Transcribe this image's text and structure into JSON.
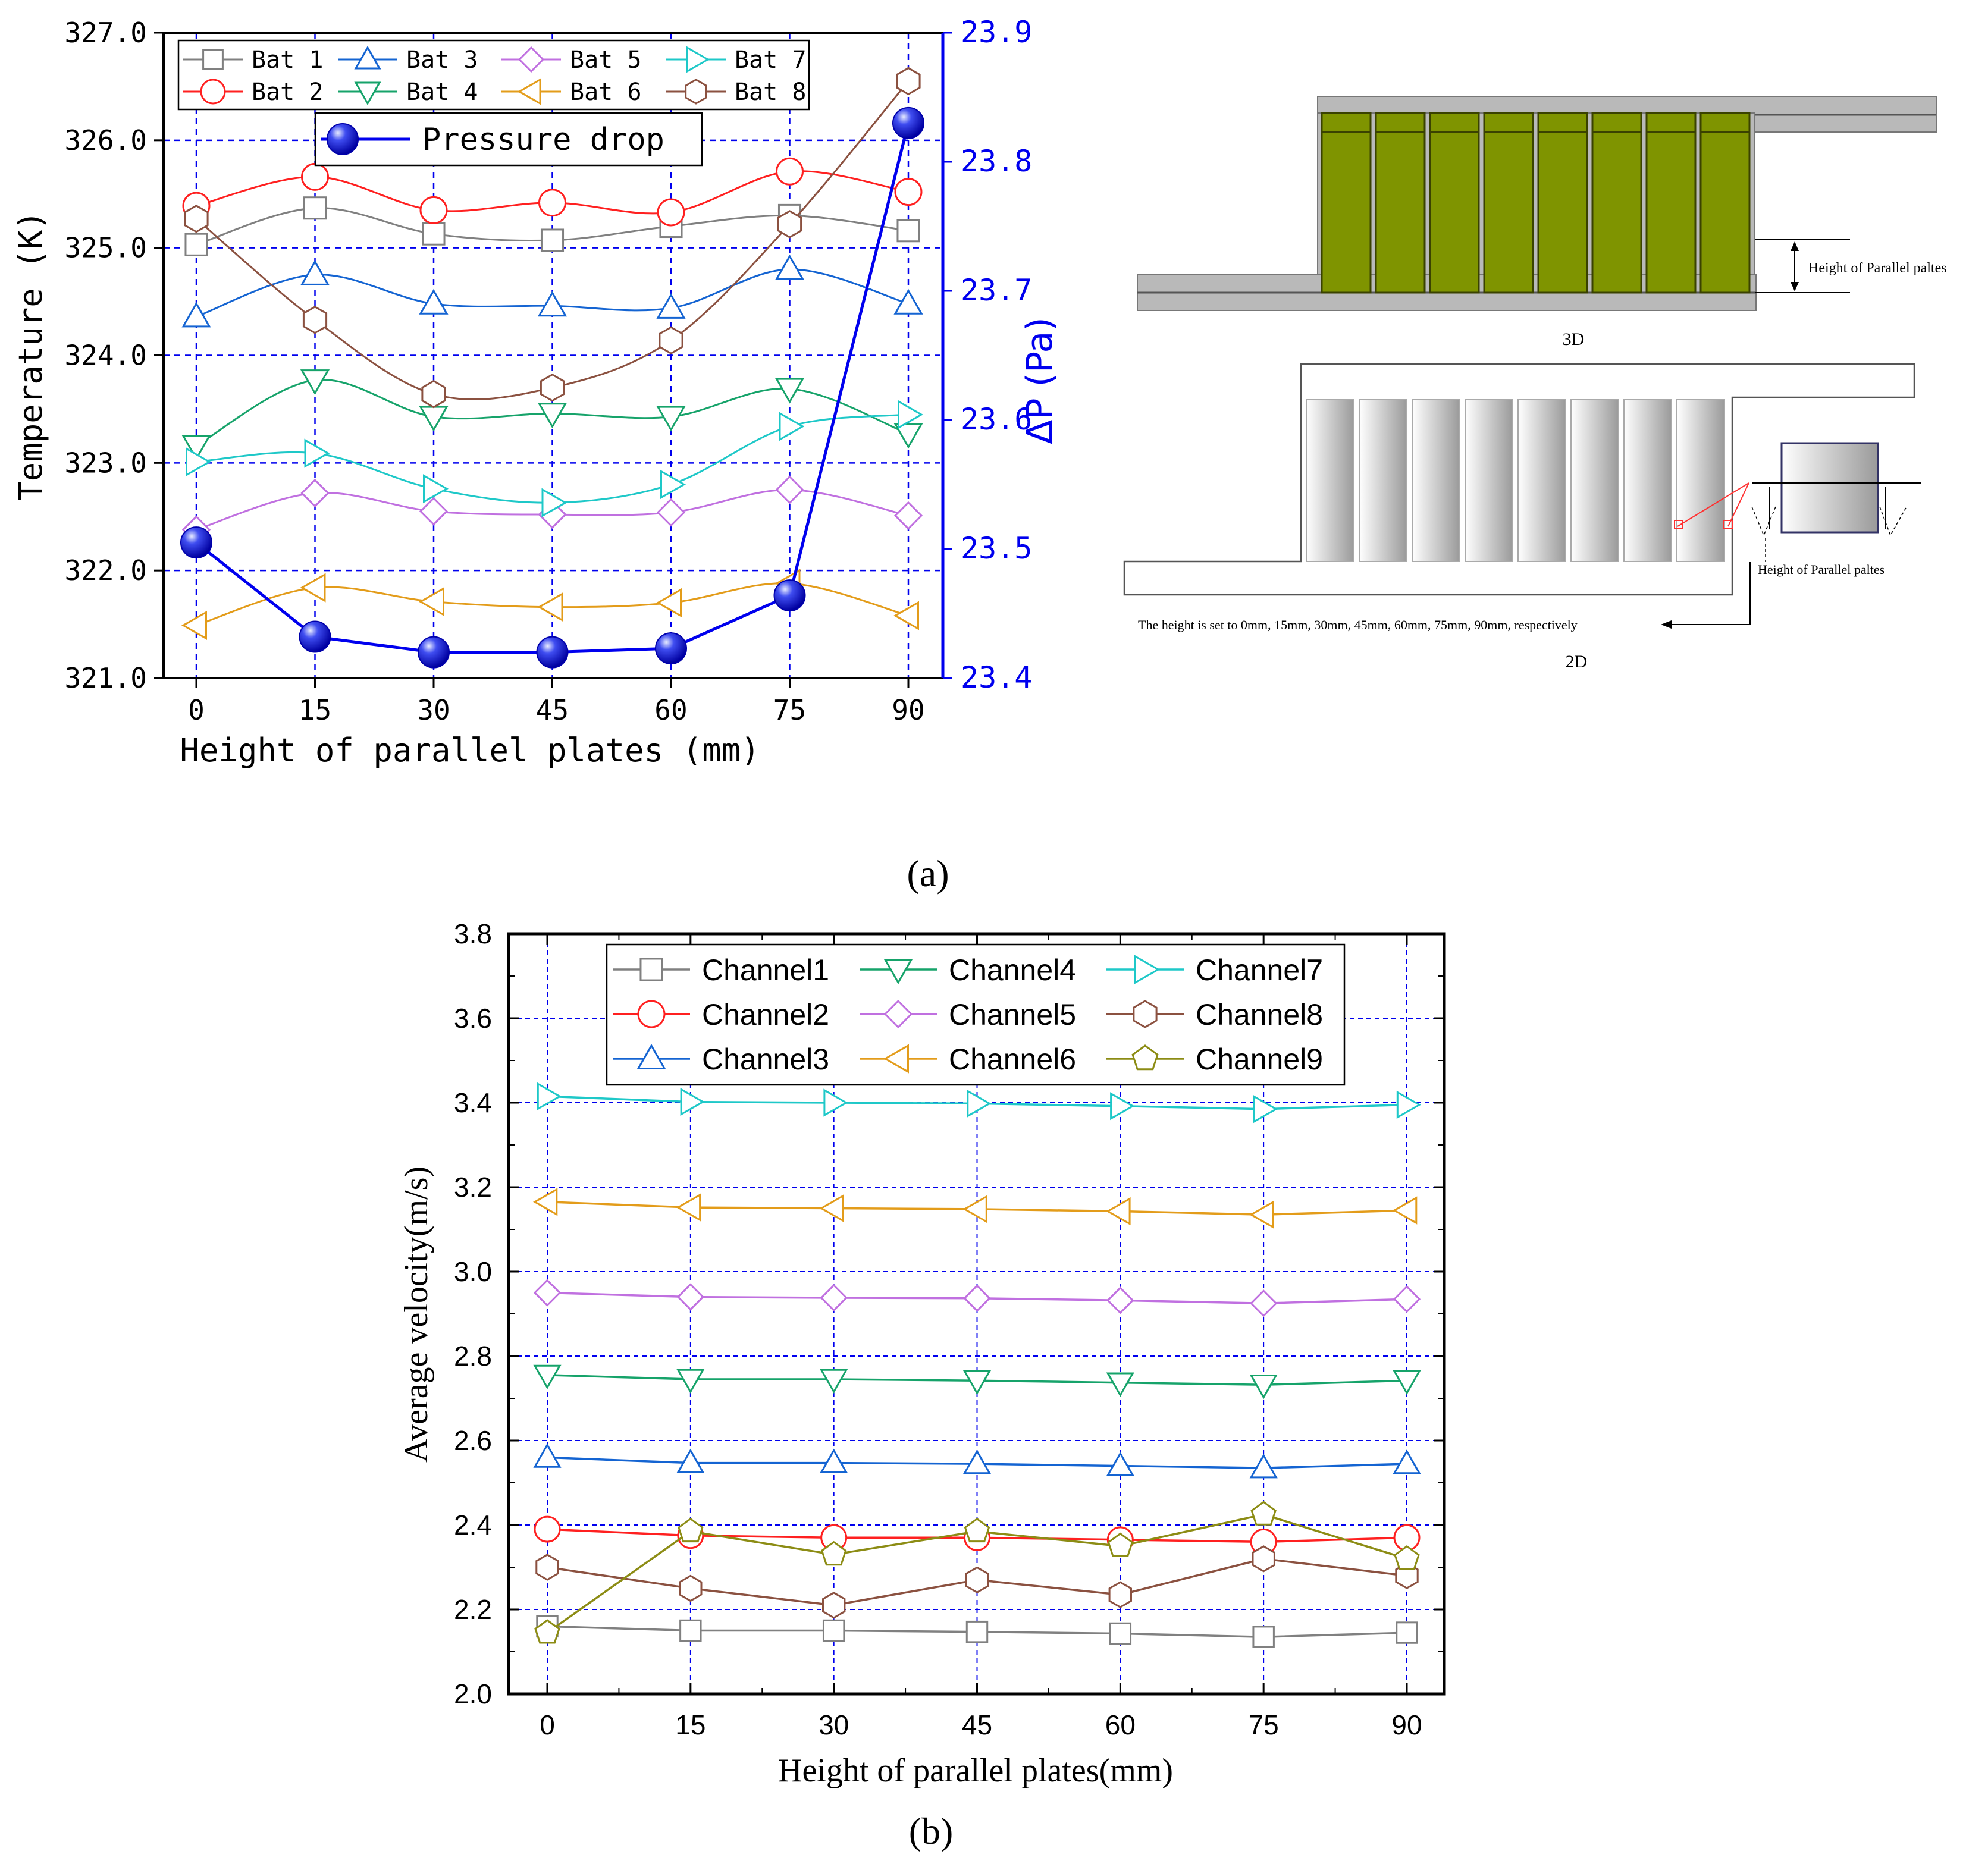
{
  "chart_data": [
    {
      "id": "a",
      "type": "line",
      "panel_label": "(a)",
      "xlabel": "Height of parallel plates (mm)",
      "ylabel": "Temperature (K)",
      "y2label": "ΔP (Pa)",
      "x": [
        0,
        15,
        30,
        45,
        60,
        75,
        90
      ],
      "ylim": [
        321.0,
        327.0
      ],
      "y2lim": [
        23.4,
        23.9
      ],
      "yticks": [
        "321.0",
        "322.0",
        "323.0",
        "324.0",
        "325.0",
        "326.0",
        "327.0"
      ],
      "y2ticks": [
        "23.4",
        "23.5",
        "23.6",
        "23.7",
        "23.8",
        "23.9"
      ],
      "xticks": [
        "0",
        "15",
        "30",
        "45",
        "60",
        "75",
        "90"
      ],
      "grid": true,
      "legend_position": "top-left",
      "series": [
        {
          "name": "Bat 1",
          "color": "#808080",
          "marker": "square",
          "values": [
            325.03,
            325.37,
            325.13,
            325.07,
            325.2,
            325.3,
            325.16
          ]
        },
        {
          "name": "Bat 2",
          "color": "#ff2020",
          "marker": "circle",
          "values": [
            325.39,
            325.66,
            325.35,
            325.42,
            325.33,
            325.71,
            325.52
          ]
        },
        {
          "name": "Bat 3",
          "color": "#1464d2",
          "marker": "triangle-up",
          "values": [
            324.36,
            324.75,
            324.48,
            324.46,
            324.44,
            324.8,
            324.48
          ]
        },
        {
          "name": "Bat 4",
          "color": "#16a36a",
          "marker": "triangle-down",
          "values": [
            323.16,
            323.77,
            323.43,
            323.46,
            323.43,
            323.69,
            323.27
          ]
        },
        {
          "name": "Bat 5",
          "color": "#c070e0",
          "marker": "diamond",
          "values": [
            322.38,
            322.72,
            322.55,
            322.52,
            322.54,
            322.75,
            322.51
          ]
        },
        {
          "name": "Bat 6",
          "color": "#e39c1a",
          "marker": "triangle-left",
          "values": [
            321.49,
            321.84,
            321.71,
            321.66,
            321.7,
            321.88,
            321.58
          ]
        },
        {
          "name": "Bat 7",
          "color": "#1ec8c8",
          "marker": "triangle-right",
          "values": [
            323.01,
            323.09,
            322.76,
            322.63,
            322.8,
            323.34,
            323.45
          ]
        },
        {
          "name": "Bat 8",
          "color": "#8b5140",
          "marker": "hexagon",
          "values": [
            325.27,
            324.33,
            323.64,
            323.7,
            324.14,
            325.22,
            326.55
          ]
        },
        {
          "name": "Pressure drop",
          "color": "#0000ee",
          "marker": "ball",
          "axis": "right",
          "values": [
            23.505,
            23.432,
            23.42,
            23.42,
            23.423,
            23.464,
            23.83
          ]
        }
      ]
    },
    {
      "id": "b",
      "type": "line",
      "panel_label": "(b)",
      "xlabel": "Height of parallel plates(mm)",
      "ylabel": "Average velocity(m/s)",
      "x": [
        0,
        15,
        30,
        45,
        60,
        75,
        90
      ],
      "ylim": [
        2.0,
        3.8
      ],
      "yticks": [
        "2.0",
        "2.2",
        "2.4",
        "2.6",
        "2.8",
        "3.0",
        "3.2",
        "3.4",
        "3.6",
        "3.8"
      ],
      "xticks": [
        "0",
        "15",
        "30",
        "45",
        "60",
        "75",
        "90"
      ],
      "grid": true,
      "legend_position": "top",
      "series": [
        {
          "name": "Channel1",
          "color": "#808080",
          "marker": "square",
          "values": [
            2.16,
            2.15,
            2.15,
            2.147,
            2.143,
            2.135,
            2.145
          ]
        },
        {
          "name": "Channel2",
          "color": "#ff2020",
          "marker": "circle",
          "values": [
            2.39,
            2.375,
            2.37,
            2.37,
            2.365,
            2.36,
            2.37
          ]
        },
        {
          "name": "Channel3",
          "color": "#1464d2",
          "marker": "triangle-up",
          "values": [
            2.56,
            2.547,
            2.547,
            2.545,
            2.54,
            2.535,
            2.545
          ]
        },
        {
          "name": "Channel4",
          "color": "#16a36a",
          "marker": "triangle-down",
          "values": [
            2.755,
            2.745,
            2.745,
            2.742,
            2.737,
            2.732,
            2.742
          ]
        },
        {
          "name": "Channel5",
          "color": "#c070e0",
          "marker": "diamond",
          "values": [
            2.95,
            2.94,
            2.938,
            2.937,
            2.932,
            2.925,
            2.935
          ]
        },
        {
          "name": "Channel6",
          "color": "#e39c1a",
          "marker": "triangle-left",
          "values": [
            3.165,
            3.152,
            3.15,
            3.148,
            3.143,
            3.135,
            3.145
          ]
        },
        {
          "name": "Channel7",
          "color": "#1ec8c8",
          "marker": "triangle-right",
          "values": [
            3.415,
            3.402,
            3.4,
            3.398,
            3.392,
            3.385,
            3.395
          ]
        },
        {
          "name": "Channel8",
          "color": "#8b5140",
          "marker": "hexagon",
          "values": [
            2.3,
            2.25,
            2.21,
            2.27,
            2.235,
            2.32,
            2.28
          ]
        },
        {
          "name": "Channel9",
          "color": "#8c8c14",
          "marker": "pentagon",
          "values": [
            2.145,
            2.385,
            2.33,
            2.385,
            2.35,
            2.425,
            2.32
          ]
        }
      ]
    }
  ],
  "schematic": {
    "label_3d": "3D",
    "label_2d": "2D",
    "height_label": "Height of Parallel paltes",
    "note": "The height is set to 0mm, 15mm, 30mm, 45mm, 60mm, 75mm, 90mm, respectively",
    "battery_count": 8,
    "battery_color_3d": "#7f9400",
    "housing_color": "#b9b9b9"
  }
}
